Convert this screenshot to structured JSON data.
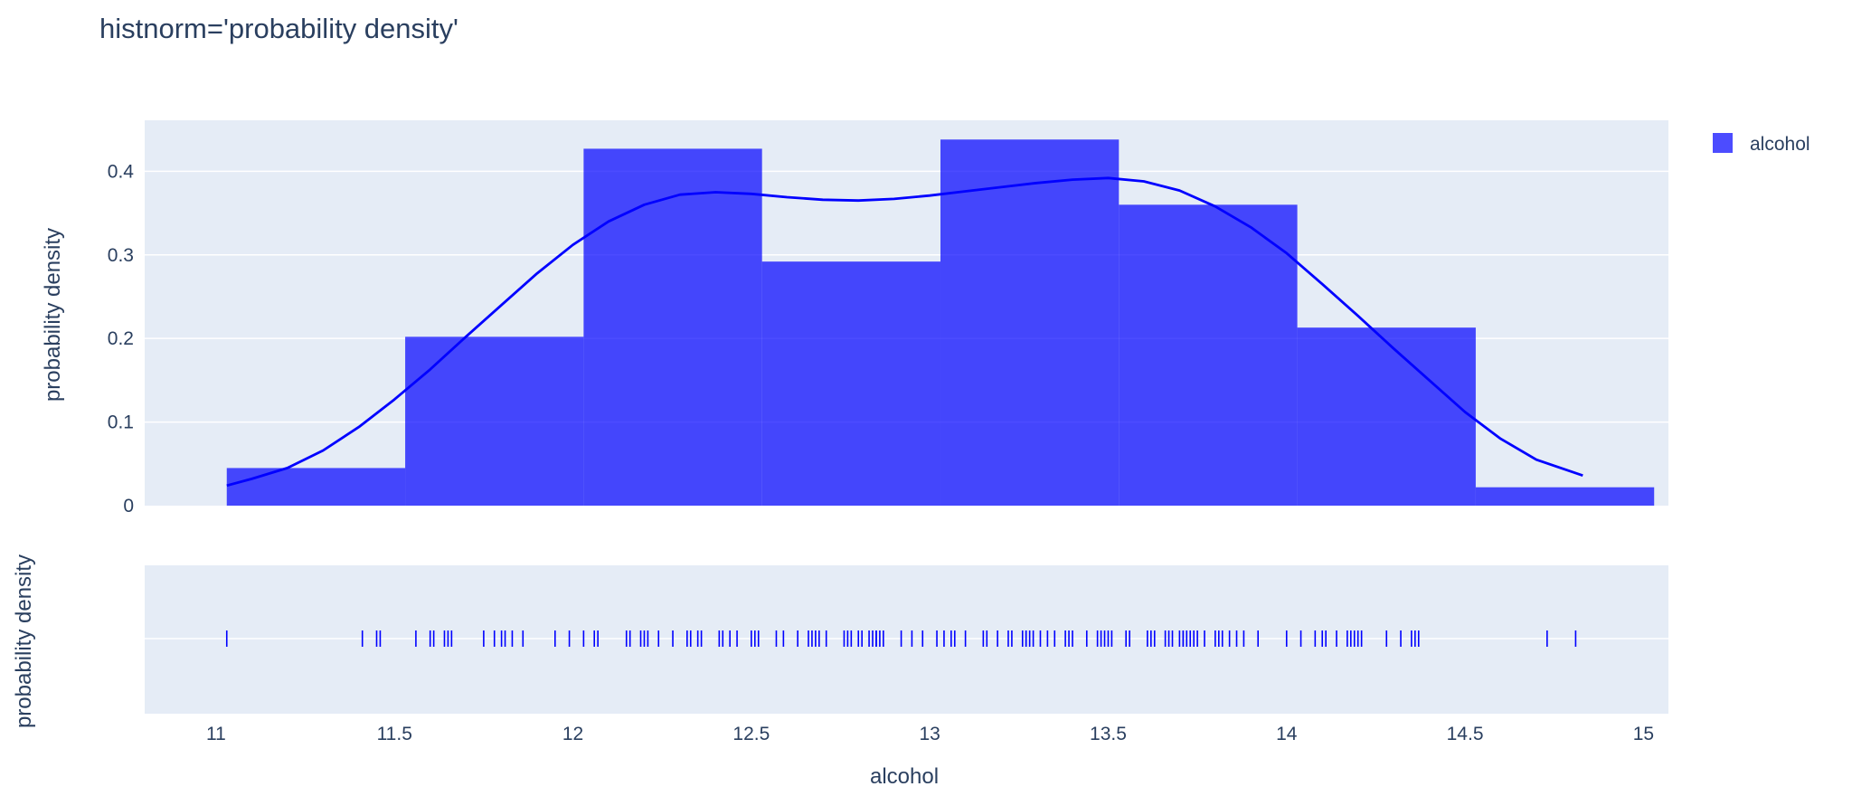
{
  "chart_data": {
    "type": "bar",
    "title": "histnorm='probability density'",
    "xlabel": "alcohol",
    "ylabel": "probability density",
    "rug_ylabel": "probability density",
    "xlim": [
      10.8,
      15.07
    ],
    "ylim": [
      0,
      0.461
    ],
    "x_ticks": [
      11,
      11.5,
      12,
      12.5,
      13,
      13.5,
      14,
      14.5,
      15
    ],
    "x_tick_labels": [
      "11",
      "11.5",
      "12",
      "12.5",
      "13",
      "13.5",
      "14",
      "14.5",
      "15"
    ],
    "y_ticks": [
      0,
      0.1,
      0.2,
      0.3,
      0.4
    ],
    "y_tick_labels": [
      "0",
      "0.1",
      "0.2",
      "0.3",
      "0.4"
    ],
    "grid": true,
    "legend": {
      "placement": "top-right",
      "entries": [
        "alcohol"
      ]
    },
    "colors": {
      "bars": "#0000ff",
      "bar_opacity": 0.7,
      "curve": "#0000ff",
      "rug": "#0000ff",
      "plot_bg": "#e5ecf6"
    },
    "histogram": {
      "name": "alcohol",
      "bin_start": 11.03,
      "bin_size": 0.5,
      "values": [
        0.045,
        0.202,
        0.427,
        0.292,
        0.438,
        0.36,
        0.213,
        0.022
      ]
    },
    "kde_curve": {
      "x": [
        11.03,
        11.1,
        11.2,
        11.3,
        11.4,
        11.5,
        11.6,
        11.7,
        11.8,
        11.9,
        12.0,
        12.1,
        12.2,
        12.3,
        12.4,
        12.5,
        12.6,
        12.7,
        12.8,
        12.9,
        13.0,
        13.1,
        13.2,
        13.3,
        13.4,
        13.5,
        13.6,
        13.7,
        13.8,
        13.9,
        14.0,
        14.1,
        14.2,
        14.3,
        14.4,
        14.5,
        14.6,
        14.7,
        14.83
      ],
      "y": [
        0.024,
        0.032,
        0.045,
        0.066,
        0.094,
        0.127,
        0.163,
        0.202,
        0.24,
        0.278,
        0.312,
        0.34,
        0.36,
        0.372,
        0.375,
        0.373,
        0.369,
        0.366,
        0.365,
        0.367,
        0.371,
        0.376,
        0.381,
        0.386,
        0.39,
        0.392,
        0.388,
        0.377,
        0.358,
        0.333,
        0.302,
        0.265,
        0.227,
        0.188,
        0.15,
        0.112,
        0.08,
        0.055,
        0.036
      ]
    },
    "rug_x": [
      11.03,
      11.41,
      11.45,
      11.46,
      11.56,
      11.6,
      11.61,
      11.64,
      11.65,
      11.66,
      11.75,
      11.78,
      11.8,
      11.81,
      11.83,
      11.86,
      11.95,
      11.99,
      12.03,
      12.06,
      12.07,
      12.15,
      12.16,
      12.19,
      12.2,
      12.21,
      12.24,
      12.28,
      12.32,
      12.33,
      12.35,
      12.36,
      12.41,
      12.42,
      12.44,
      12.46,
      12.5,
      12.51,
      12.52,
      12.57,
      12.59,
      12.63,
      12.66,
      12.67,
      12.68,
      12.69,
      12.71,
      12.76,
      12.77,
      12.78,
      12.8,
      12.81,
      12.83,
      12.84,
      12.85,
      12.85,
      12.86,
      12.87,
      12.92,
      12.95,
      12.98,
      13.02,
      13.04,
      13.06,
      13.07,
      13.1,
      13.15,
      13.16,
      13.19,
      13.22,
      13.23,
      13.26,
      13.27,
      13.27,
      13.28,
      13.29,
      13.31,
      13.33,
      13.35,
      13.38,
      13.39,
      13.4,
      13.44,
      13.47,
      13.48,
      13.49,
      13.5,
      13.51,
      13.55,
      13.56,
      13.61,
      13.62,
      13.63,
      13.66,
      13.67,
      13.68,
      13.7,
      13.71,
      13.71,
      13.72,
      13.73,
      13.74,
      13.75,
      13.77,
      13.8,
      13.81,
      13.82,
      13.84,
      13.86,
      13.88,
      13.92,
      14.0,
      14.04,
      14.08,
      14.1,
      14.11,
      14.14,
      14.17,
      14.18,
      14.19,
      14.2,
      14.21,
      14.28,
      14.32,
      14.35,
      14.36,
      14.37,
      14.73,
      14.81
    ]
  }
}
